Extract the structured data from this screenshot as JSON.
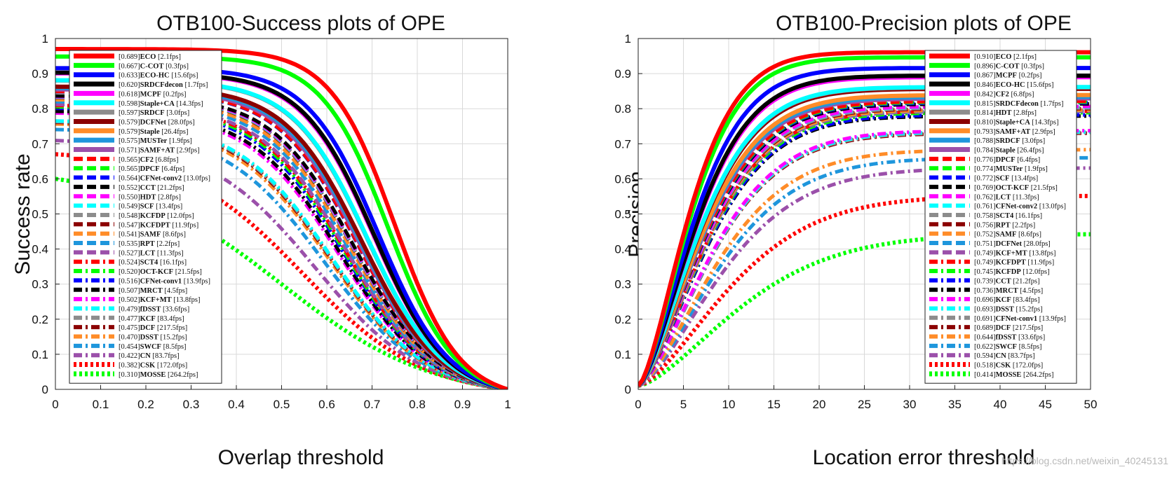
{
  "watermark": "https://blog.csdn.net/weixin_40245131",
  "chart_data": [
    {
      "type": "line",
      "title": "OTB100-Success plots of OPE",
      "xlabel": "Overlap threshold",
      "ylabel": "Success rate",
      "xlim": [
        0,
        1
      ],
      "ylim": [
        0,
        1
      ],
      "xticks": [
        "0",
        "0.1",
        "0.2",
        "0.3",
        "0.4",
        "0.5",
        "0.6",
        "0.7",
        "0.8",
        "0.9",
        "1"
      ],
      "yticks": [
        "0",
        "0.1",
        "0.2",
        "0.3",
        "0.4",
        "0.5",
        "0.6",
        "0.7",
        "0.8",
        "0.9",
        "1"
      ],
      "grid": true,
      "legend_position": "top-left",
      "series": [
        {
          "name": "ECO",
          "score": "0.689",
          "speed": "[2.1fps]",
          "color": "#ff0000",
          "style": "solid"
        },
        {
          "name": "C-COT",
          "score": "0.667",
          "speed": "[0.3fps]",
          "color": "#00ff00",
          "style": "solid"
        },
        {
          "name": "ECO-HC",
          "score": "0.633",
          "speed": "[15.6fps]",
          "color": "#0000ff",
          "style": "solid"
        },
        {
          "name": "SRDCFdecon",
          "score": "0.620",
          "speed": "[1.7fps]",
          "color": "#000000",
          "style": "solid"
        },
        {
          "name": "MCPF",
          "score": "0.618",
          "speed": "[0.2fps]",
          "color": "#ff00ff",
          "style": "solid"
        },
        {
          "name": "Staple+CA",
          "score": "0.598",
          "speed": "[14.3fps]",
          "color": "#00ffff",
          "style": "solid"
        },
        {
          "name": "SRDCF",
          "score": "0.597",
          "speed": "[3.0fps]",
          "color": "#8c8c8c",
          "style": "solid"
        },
        {
          "name": "DCFNet",
          "score": "0.579",
          "speed": "[28.0fps]",
          "color": "#8b0000",
          "style": "solid"
        },
        {
          "name": "Staple",
          "score": "0.579",
          "speed": "[26.4fps]",
          "color": "#ff8c28",
          "style": "solid"
        },
        {
          "name": "MUSTer",
          "score": "0.575",
          "speed": "[1.9fps]",
          "color": "#1e96dc",
          "style": "solid"
        },
        {
          "name": "SAMF+AT",
          "score": "0.571",
          "speed": "[2.9fps]",
          "color": "#9b50aa",
          "style": "solid"
        },
        {
          "name": "CF2",
          "score": "0.565",
          "speed": "[6.8fps]",
          "color": "#ff0000",
          "style": "dashed"
        },
        {
          "name": "DPCF",
          "score": "0.565",
          "speed": "[6.4fps]",
          "color": "#00ff00",
          "style": "dashed"
        },
        {
          "name": "CFNet-conv2",
          "score": "0.564",
          "speed": "[13.0fps]",
          "color": "#0000ff",
          "style": "dashed"
        },
        {
          "name": "CCT",
          "score": "0.552",
          "speed": "[21.2fps]",
          "color": "#000000",
          "style": "dashed"
        },
        {
          "name": "HDT",
          "score": "0.550",
          "speed": "[2.8fps]",
          "color": "#ff00ff",
          "style": "dashed"
        },
        {
          "name": "SCF",
          "score": "0.549",
          "speed": "[13.4fps]",
          "color": "#00ffff",
          "style": "dashed"
        },
        {
          "name": "KCFDP",
          "score": "0.548",
          "speed": "[12.0fps]",
          "color": "#8c8c8c",
          "style": "dashed"
        },
        {
          "name": "KCFDPT",
          "score": "0.547",
          "speed": "[11.9fps]",
          "color": "#8b0000",
          "style": "dashed"
        },
        {
          "name": "SAMF",
          "score": "0.541",
          "speed": "[8.6fps]",
          "color": "#ff8c28",
          "style": "dashed"
        },
        {
          "name": "RPT",
          "score": "0.535",
          "speed": "[2.2fps]",
          "color": "#1e96dc",
          "style": "dashed"
        },
        {
          "name": "LCT",
          "score": "0.527",
          "speed": "[11.3fps]",
          "color": "#9b50aa",
          "style": "dashed"
        },
        {
          "name": "SCT4",
          "score": "0.524",
          "speed": "[16.1fps]",
          "color": "#ff0000",
          "style": "dashdot"
        },
        {
          "name": "OCT-KCF",
          "score": "0.520",
          "speed": "[21.5fps]",
          "color": "#00ff00",
          "style": "dashdot"
        },
        {
          "name": "CFNet-conv1",
          "score": "0.516",
          "speed": "[13.9fps]",
          "color": "#0000ff",
          "style": "dashdot"
        },
        {
          "name": "MRCT",
          "score": "0.507",
          "speed": "[4.5fps]",
          "color": "#000000",
          "style": "dashdot"
        },
        {
          "name": "KCF+MT",
          "score": "0.502",
          "speed": "[13.8fps]",
          "color": "#ff00ff",
          "style": "dashdot"
        },
        {
          "name": "fDSST",
          "score": "0.479",
          "speed": "[33.6fps]",
          "color": "#00ffff",
          "style": "dashdot"
        },
        {
          "name": "KCF",
          "score": "0.477",
          "speed": "[83.4fps]",
          "color": "#8c8c8c",
          "style": "dashdot"
        },
        {
          "name": "DCF",
          "score": "0.475",
          "speed": "[217.5fps]",
          "color": "#8b0000",
          "style": "dashdot"
        },
        {
          "name": "DSST",
          "score": "0.470",
          "speed": "[15.2fps]",
          "color": "#ff8c28",
          "style": "dashdot"
        },
        {
          "name": "SWCF",
          "score": "0.454",
          "speed": "[8.5fps]",
          "color": "#1e96dc",
          "style": "dashdot"
        },
        {
          "name": "CN",
          "score": "0.422",
          "speed": "[83.7fps]",
          "color": "#9b50aa",
          "style": "dashdot"
        },
        {
          "name": "CSK",
          "score": "0.382",
          "speed": "[172.0fps]",
          "color": "#ff0000",
          "style": "dotted"
        },
        {
          "name": "MOSSE",
          "score": "0.310",
          "speed": "[264.2fps]",
          "color": "#00ff00",
          "style": "dotted"
        }
      ]
    },
    {
      "type": "line",
      "title": "OTB100-Precision plots of OPE",
      "xlabel": "Location error threshold",
      "ylabel": "Precision",
      "xlim": [
        0,
        50
      ],
      "ylim": [
        0,
        1
      ],
      "xticks": [
        "0",
        "5",
        "10",
        "15",
        "20",
        "25",
        "30",
        "35",
        "40",
        "45",
        "50"
      ],
      "yticks": [
        "0",
        "0.1",
        "0.2",
        "0.3",
        "0.4",
        "0.5",
        "0.6",
        "0.7",
        "0.8",
        "0.9",
        "1"
      ],
      "grid": true,
      "legend_position": "top-right",
      "series": [
        {
          "name": "ECO",
          "score": "0.910",
          "speed": "[2.1fps]",
          "color": "#ff0000",
          "style": "solid"
        },
        {
          "name": "C-COT",
          "score": "0.896",
          "speed": "[0.3fps]",
          "color": "#00ff00",
          "style": "solid"
        },
        {
          "name": "MCPF",
          "score": "0.867",
          "speed": "[0.2fps]",
          "color": "#0000ff",
          "style": "solid"
        },
        {
          "name": "ECO-HC",
          "score": "0.846",
          "speed": "[15.6fps]",
          "color": "#000000",
          "style": "solid"
        },
        {
          "name": "CF2",
          "score": "0.842",
          "speed": "[6.8fps]",
          "color": "#ff00ff",
          "style": "solid"
        },
        {
          "name": "SRDCFdecon",
          "score": "0.815",
          "speed": "[1.7fps]",
          "color": "#00ffff",
          "style": "solid"
        },
        {
          "name": "HDT",
          "score": "0.814",
          "speed": "[2.8fps]",
          "color": "#8c8c8c",
          "style": "solid"
        },
        {
          "name": "Staple+CA",
          "score": "0.810",
          "speed": "[14.3fps]",
          "color": "#8b0000",
          "style": "solid"
        },
        {
          "name": "SAMF+AT",
          "score": "0.793",
          "speed": "[2.9fps]",
          "color": "#ff8c28",
          "style": "solid"
        },
        {
          "name": "SRDCF",
          "score": "0.788",
          "speed": "[3.0fps]",
          "color": "#1e96dc",
          "style": "solid"
        },
        {
          "name": "Staple",
          "score": "0.784",
          "speed": "[26.4fps]",
          "color": "#9b50aa",
          "style": "solid"
        },
        {
          "name": "DPCF",
          "score": "0.776",
          "speed": "[6.4fps]",
          "color": "#ff0000",
          "style": "dashed"
        },
        {
          "name": "MUSTer",
          "score": "0.774",
          "speed": "[1.9fps]",
          "color": "#00ff00",
          "style": "dashed"
        },
        {
          "name": "SCF",
          "score": "0.772",
          "speed": "[13.4fps]",
          "color": "#0000ff",
          "style": "dashed"
        },
        {
          "name": "OCT-KCF",
          "score": "0.769",
          "speed": "[21.5fps]",
          "color": "#000000",
          "style": "dashed"
        },
        {
          "name": "LCT",
          "score": "0.762",
          "speed": "[11.3fps]",
          "color": "#ff00ff",
          "style": "dashed"
        },
        {
          "name": "CFNet-conv2",
          "score": "0.761",
          "speed": "[13.0fps]",
          "color": "#00ffff",
          "style": "dashed"
        },
        {
          "name": "SCT4",
          "score": "0.758",
          "speed": "[16.1fps]",
          "color": "#8c8c8c",
          "style": "dashed"
        },
        {
          "name": "RPT",
          "score": "0.756",
          "speed": "[2.2fps]",
          "color": "#8b0000",
          "style": "dashed"
        },
        {
          "name": "SAMF",
          "score": "0.752",
          "speed": "[8.6fps]",
          "color": "#ff8c28",
          "style": "dashed"
        },
        {
          "name": "DCFNet",
          "score": "0.751",
          "speed": "[28.0fps]",
          "color": "#1e96dc",
          "style": "dashed"
        },
        {
          "name": "KCF+MT",
          "score": "0.749",
          "speed": "[13.8fps]",
          "color": "#9b50aa",
          "style": "dashed"
        },
        {
          "name": "KCFDPT",
          "score": "0.749",
          "speed": "[11.9fps]",
          "color": "#ff0000",
          "style": "dashdot"
        },
        {
          "name": "KCFDP",
          "score": "0.745",
          "speed": "[12.0fps]",
          "color": "#00ff00",
          "style": "dashdot"
        },
        {
          "name": "CCT",
          "score": "0.739",
          "speed": "[21.2fps]",
          "color": "#0000ff",
          "style": "dashdot"
        },
        {
          "name": "MRCT",
          "score": "0.736",
          "speed": "[4.5fps]",
          "color": "#000000",
          "style": "dashdot"
        },
        {
          "name": "KCF",
          "score": "0.696",
          "speed": "[83.4fps]",
          "color": "#ff00ff",
          "style": "dashdot"
        },
        {
          "name": "DSST",
          "score": "0.693",
          "speed": "[15.2fps]",
          "color": "#00ffff",
          "style": "dashdot"
        },
        {
          "name": "CFNet-conv1",
          "score": "0.691",
          "speed": "[13.9fps]",
          "color": "#8c8c8c",
          "style": "dashdot"
        },
        {
          "name": "DCF",
          "score": "0.689",
          "speed": "[217.5fps]",
          "color": "#8b0000",
          "style": "dashdot"
        },
        {
          "name": "fDSST",
          "score": "0.644",
          "speed": "[33.6fps]",
          "color": "#ff8c28",
          "style": "dashdot"
        },
        {
          "name": "SWCF",
          "score": "0.622",
          "speed": "[8.5fps]",
          "color": "#1e96dc",
          "style": "dashdot"
        },
        {
          "name": "CN",
          "score": "0.594",
          "speed": "[83.7fps]",
          "color": "#9b50aa",
          "style": "dashdot"
        },
        {
          "name": "CSK",
          "score": "0.518",
          "speed": "[172.0fps]",
          "color": "#ff0000",
          "style": "dotted"
        },
        {
          "name": "MOSSE",
          "score": "0.414",
          "speed": "[264.2fps]",
          "color": "#00ff00",
          "style": "dotted"
        }
      ]
    }
  ]
}
